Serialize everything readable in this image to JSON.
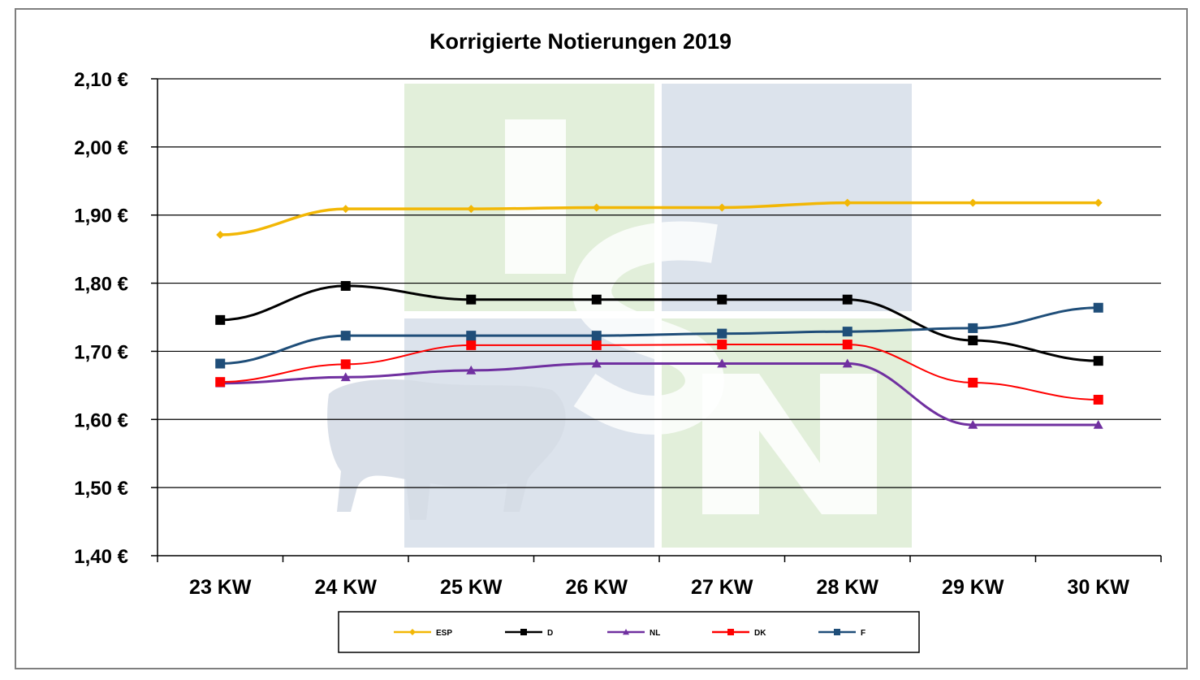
{
  "chart_data": {
    "type": "line",
    "title": "Korrigierte Notierungen 2019",
    "xlabel": "",
    "ylabel": "",
    "categories": [
      "23 KW",
      "24 KW",
      "25 KW",
      "26 KW",
      "27 KW",
      "28 KW",
      "29 KW",
      "30 KW"
    ],
    "ylim": [
      1.4,
      2.1
    ],
    "yticks": [
      1.4,
      1.5,
      1.6,
      1.7,
      1.8,
      1.9,
      2.0,
      2.1
    ],
    "ytick_labels": [
      "1,40 €",
      "1,50 €",
      "1,60 €",
      "1,70 €",
      "1,80 €",
      "1,90 €",
      "2,00 €",
      "2,10 €"
    ],
    "grid": true,
    "legend_position": "bottom",
    "series": [
      {
        "name": "ESP",
        "color": "#F2B705",
        "marker": "diamond",
        "values": [
          1.871,
          1.909,
          1.909,
          1.911,
          1.911,
          1.918,
          1.918,
          1.918
        ]
      },
      {
        "name": "D",
        "color": "#000000",
        "marker": "square",
        "values": [
          1.746,
          1.796,
          1.776,
          1.776,
          1.776,
          1.776,
          1.716,
          1.686
        ]
      },
      {
        "name": "NL",
        "color": "#7030A0",
        "marker": "triangle",
        "values": [
          1.653,
          1.662,
          1.672,
          1.682,
          1.682,
          1.682,
          1.592,
          1.592
        ]
      },
      {
        "name": "DK",
        "color": "#FF0000",
        "marker": "square",
        "values": [
          1.655,
          1.681,
          1.709,
          1.709,
          1.71,
          1.71,
          1.654,
          1.629
        ]
      },
      {
        "name": "F",
        "color": "#1F4E79",
        "marker": "square",
        "values": [
          1.682,
          1.723,
          1.723,
          1.723,
          1.726,
          1.729,
          1.734,
          1.764
        ]
      }
    ]
  },
  "watermark": {
    "text": "ISN",
    "colors": {
      "green": "#E2EFDA",
      "blue": "#DCE3EC"
    }
  }
}
